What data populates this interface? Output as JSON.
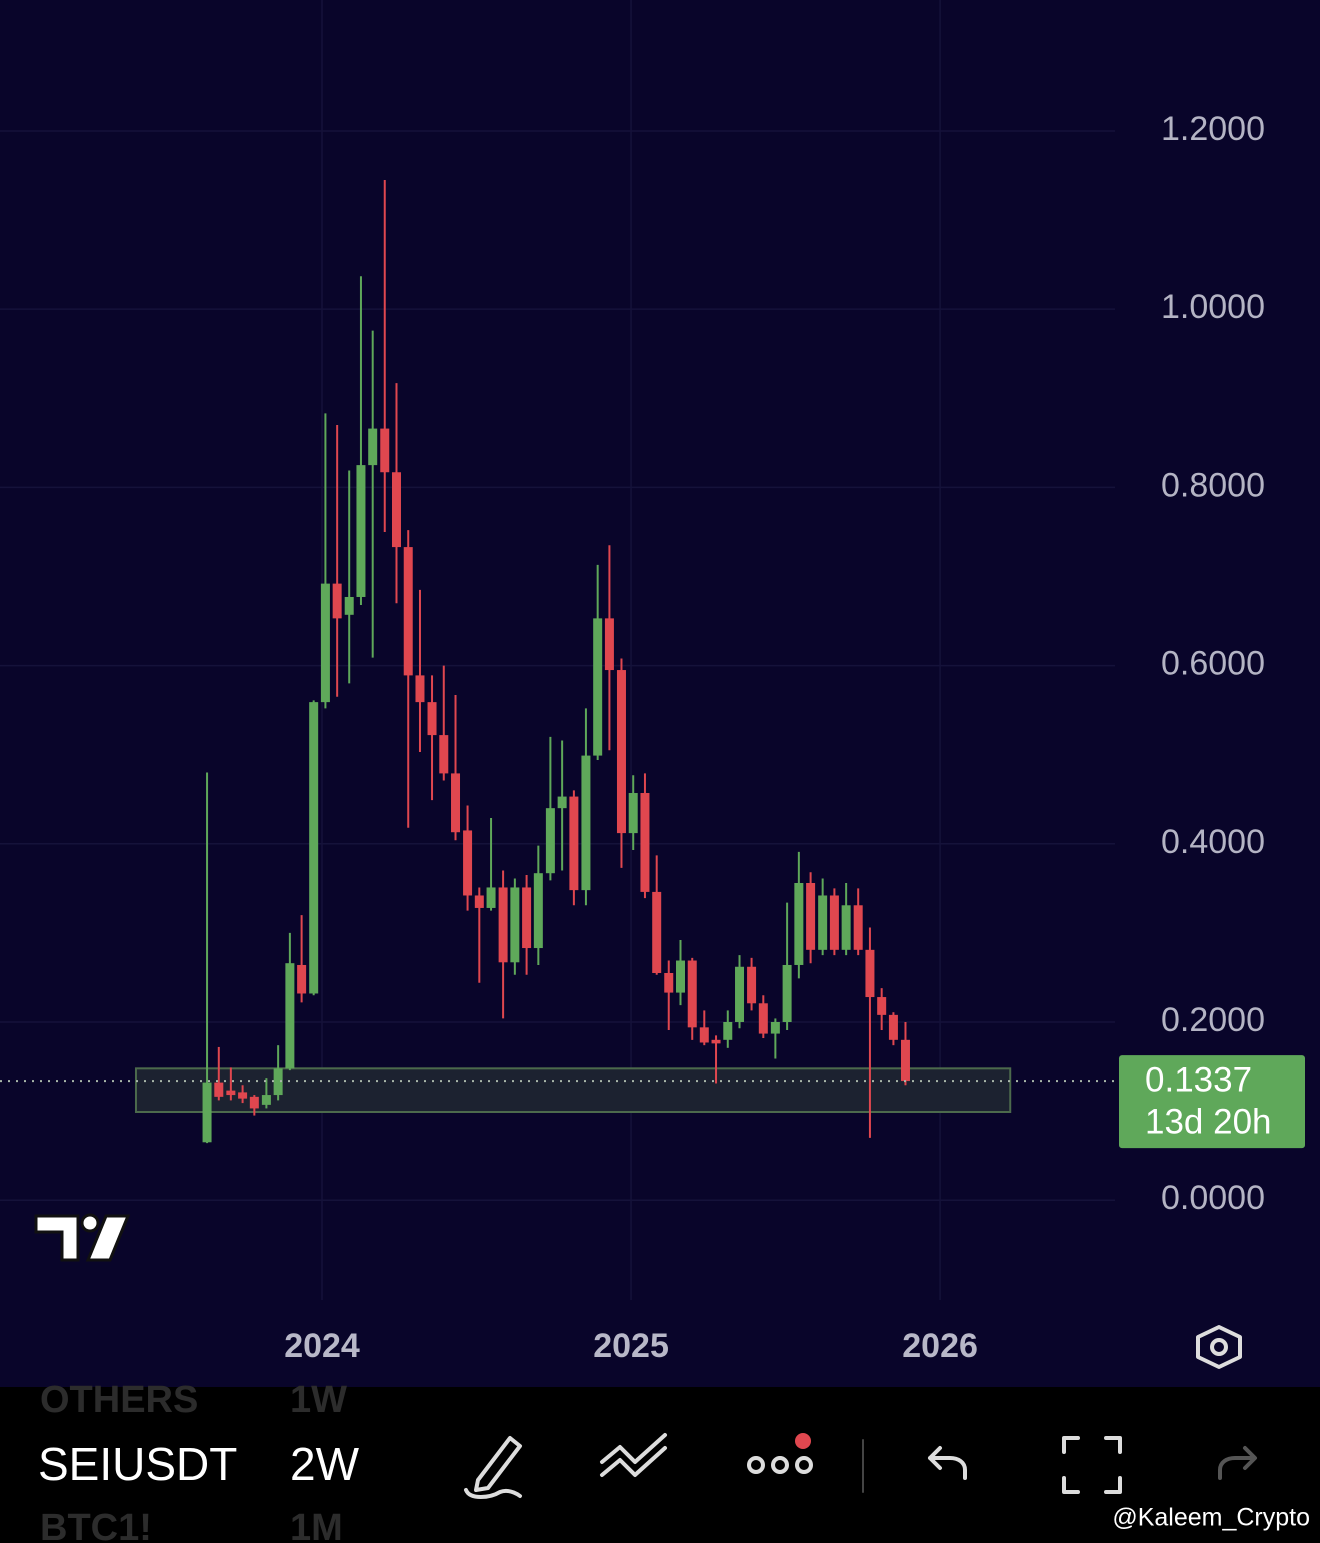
{
  "chart_data": {
    "type": "candlestick",
    "up_color": "#5fa85a",
    "down_color": "#e0474f",
    "x": [
      2023.628,
      2023.666,
      2023.705,
      2023.743,
      2023.781,
      2023.82,
      2023.858,
      2023.896,
      2023.934,
      2023.973,
      2024.011,
      2024.049,
      2024.088,
      2024.126,
      2024.164,
      2024.203,
      2024.241,
      2024.279,
      2024.317,
      2024.356,
      2024.394,
      2024.432,
      2024.471,
      2024.509,
      2024.547,
      2024.586,
      2024.624,
      2024.662,
      2024.7,
      2024.739,
      2024.777,
      2024.815,
      2024.854,
      2024.892,
      2024.93,
      2024.969,
      2025.007,
      2025.045,
      2025.083,
      2025.122,
      2025.16,
      2025.198,
      2025.237,
      2025.275,
      2025.313,
      2025.351,
      2025.39,
      2025.428,
      2025.467,
      2025.505,
      2025.543,
      2025.581,
      2025.62,
      2025.658,
      2025.696,
      2025.735,
      2025.773,
      2025.811,
      2025.849,
      2025.888
    ],
    "open": [
      0.065,
      0.132,
      0.123,
      0.121,
      0.116,
      0.107,
      0.118,
      0.148,
      0.264,
      0.232,
      0.559,
      0.692,
      0.657,
      0.677,
      0.825,
      0.866,
      0.817,
      0.733,
      0.589,
      0.559,
      0.522,
      0.479,
      0.415,
      0.342,
      0.328,
      0.351,
      0.267,
      0.351,
      0.283,
      0.367,
      0.44,
      0.453,
      0.348,
      0.499,
      0.653,
      0.595,
      0.412,
      0.457,
      0.346,
      0.255,
      0.233,
      0.269,
      0.194,
      0.18,
      0.18,
      0.2,
      0.262,
      0.221,
      0.187,
      0.2,
      0.264,
      0.356,
      0.281,
      0.342,
      0.281,
      0.331,
      0.281,
      0.228,
      0.208,
      0.18
    ],
    "high": [
      0.48,
      0.172,
      0.149,
      0.129,
      0.118,
      0.137,
      0.174,
      0.3,
      0.32,
      0.561,
      0.883,
      0.87,
      0.819,
      1.037,
      0.976,
      1.145,
      0.917,
      0.752,
      0.685,
      0.589,
      0.6,
      0.567,
      0.443,
      0.351,
      0.429,
      0.37,
      0.361,
      0.365,
      0.398,
      0.52,
      0.516,
      0.46,
      0.552,
      0.713,
      0.735,
      0.608,
      0.477,
      0.479,
      0.387,
      0.269,
      0.292,
      0.272,
      0.213,
      0.185,
      0.213,
      0.275,
      0.272,
      0.23,
      0.204,
      0.334,
      0.391,
      0.368,
      0.361,
      0.35,
      0.356,
      0.35,
      0.306,
      0.238,
      0.211,
      0.2
    ],
    "low": [
      0.064,
      0.112,
      0.112,
      0.109,
      0.095,
      0.103,
      0.112,
      0.146,
      0.222,
      0.23,
      0.552,
      0.565,
      0.58,
      0.668,
      0.609,
      0.75,
      0.67,
      0.418,
      0.503,
      0.449,
      0.471,
      0.404,
      0.325,
      0.244,
      0.325,
      0.204,
      0.253,
      0.253,
      0.264,
      0.359,
      0.37,
      0.331,
      0.331,
      0.494,
      0.505,
      0.373,
      0.393,
      0.339,
      0.253,
      0.191,
      0.219,
      0.18,
      0.174,
      0.131,
      0.171,
      0.193,
      0.213,
      0.182,
      0.159,
      0.191,
      0.249,
      0.266,
      0.275,
      0.275,
      0.275,
      0.275,
      0.07,
      0.191,
      0.174,
      0.129
    ],
    "close": [
      0.132,
      0.116,
      0.118,
      0.114,
      0.103,
      0.118,
      0.148,
      0.266,
      0.232,
      0.559,
      0.692,
      0.653,
      0.677,
      0.825,
      0.866,
      0.817,
      0.733,
      0.589,
      0.559,
      0.522,
      0.479,
      0.413,
      0.342,
      0.328,
      0.351,
      0.267,
      0.351,
      0.283,
      0.367,
      0.44,
      0.453,
      0.348,
      0.499,
      0.653,
      0.595,
      0.412,
      0.457,
      0.346,
      0.255,
      0.233,
      0.269,
      0.194,
      0.177,
      0.176,
      0.2,
      0.262,
      0.221,
      0.187,
      0.2,
      0.264,
      0.356,
      0.281,
      0.342,
      0.281,
      0.331,
      0.281,
      0.228,
      0.208,
      0.18,
      0.1337
    ],
    "xlim": [
      2022.958,
      2026.566
    ],
    "xticks": [
      2024,
      2025,
      2026
    ],
    "ylim": [
      -0.112,
      1.347
    ],
    "yticks": [
      {
        "value": 0,
        "label": "0.0000"
      },
      {
        "value": 0.2,
        "label": "0.2000"
      },
      {
        "value": 0.4,
        "label": "0.4000"
      },
      {
        "value": 0.6,
        "label": "0.6000"
      },
      {
        "value": 0.8,
        "label": "0.8000"
      },
      {
        "value": 1.0,
        "label": "1.0000"
      },
      {
        "value": 1.2,
        "label": "1.2000"
      }
    ],
    "grid": true,
    "zone": {
      "y": [
        0.099,
        0.148
      ],
      "x": [
        2023.398,
        2026.227
      ],
      "color": "#1c2230"
    },
    "countdown": "13d 20h"
  },
  "toolbar": {
    "prev_symbol": "OTHERS",
    "prev_interval": "1W",
    "symbol": "SEIUSDT",
    "interval": "2W",
    "next_symbol": "BTC1!",
    "next_interval": "1M"
  },
  "watermark": "@Kaleem_Crypto"
}
